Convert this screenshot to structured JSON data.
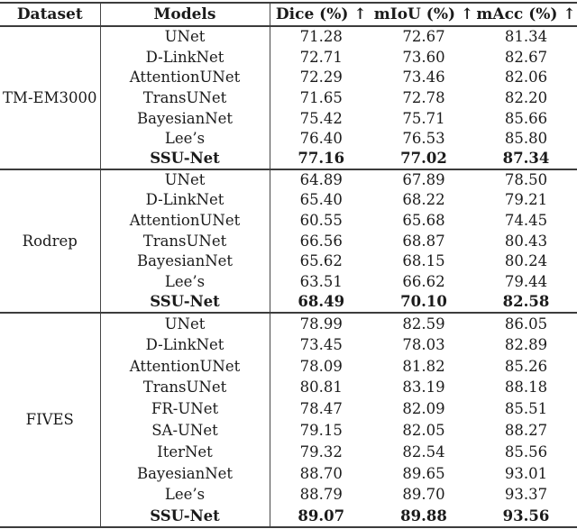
{
  "table": {
    "columns": [
      "Dataset",
      "Models",
      "Dice (%) ↑",
      "mIoU (%) ↑",
      "mAcc (%) ↑"
    ],
    "groups": [
      {
        "dataset": "TM-EM3000",
        "rows": [
          {
            "model": "UNet",
            "dice": "71.28",
            "miou": "72.67",
            "macc": "81.34",
            "bold": false
          },
          {
            "model": "D-LinkNet",
            "dice": "72.71",
            "miou": "73.60",
            "macc": "82.67",
            "bold": false
          },
          {
            "model": "AttentionUNet",
            "dice": "72.29",
            "miou": "73.46",
            "macc": "82.06",
            "bold": false
          },
          {
            "model": "TransUNet",
            "dice": "71.65",
            "miou": "72.78",
            "macc": "82.20",
            "bold": false
          },
          {
            "model": "BayesianNet",
            "dice": "75.42",
            "miou": "75.71",
            "macc": "85.66",
            "bold": false
          },
          {
            "model": "Lee’s",
            "dice": "76.40",
            "miou": "76.53",
            "macc": "85.80",
            "bold": false
          },
          {
            "model": "SSU-Net",
            "dice": "77.16",
            "miou": "77.02",
            "macc": "87.34",
            "bold": true
          }
        ]
      },
      {
        "dataset": "Rodrep",
        "rows": [
          {
            "model": "UNet",
            "dice": "64.89",
            "miou": "67.89",
            "macc": "78.50",
            "bold": false
          },
          {
            "model": "D-LinkNet",
            "dice": "65.40",
            "miou": "68.22",
            "macc": "79.21",
            "bold": false
          },
          {
            "model": "AttentionUNet",
            "dice": "60.55",
            "miou": "65.68",
            "macc": "74.45",
            "bold": false
          },
          {
            "model": "TransUNet",
            "dice": "66.56",
            "miou": "68.87",
            "macc": "80.43",
            "bold": false
          },
          {
            "model": "BayesianNet",
            "dice": "65.62",
            "miou": "68.15",
            "macc": "80.24",
            "bold": false
          },
          {
            "model": "Lee’s",
            "dice": "63.51",
            "miou": "66.62",
            "macc": "79.44",
            "bold": false
          },
          {
            "model": "SSU-Net",
            "dice": "68.49",
            "miou": "70.10",
            "macc": "82.58",
            "bold": true
          }
        ]
      },
      {
        "dataset": "FIVES",
        "rows": [
          {
            "model": "UNet",
            "dice": "78.99",
            "miou": "82.59",
            "macc": "86.05",
            "bold": false
          },
          {
            "model": "D-LinkNet",
            "dice": "73.45",
            "miou": "78.03",
            "macc": "82.89",
            "bold": false
          },
          {
            "model": "AttentionUNet",
            "dice": "78.09",
            "miou": "81.82",
            "macc": "85.26",
            "bold": false
          },
          {
            "model": "TransUNet",
            "dice": "80.81",
            "miou": "83.19",
            "macc": "88.18",
            "bold": false
          },
          {
            "model": "FR-UNet",
            "dice": "78.47",
            "miou": "82.09",
            "macc": "85.51",
            "bold": false
          },
          {
            "model": "SA-UNet",
            "dice": "79.15",
            "miou": "82.05",
            "macc": "88.27",
            "bold": false
          },
          {
            "model": "IterNet",
            "dice": "79.32",
            "miou": "82.54",
            "macc": "85.56",
            "bold": false
          },
          {
            "model": "BayesianNet",
            "dice": "88.70",
            "miou": "89.65",
            "macc": "93.01",
            "bold": false
          },
          {
            "model": "Lee’s",
            "dice": "88.79",
            "miou": "89.70",
            "macc": "93.37",
            "bold": false
          },
          {
            "model": "SSU-Net",
            "dice": "89.07",
            "miou": "89.88",
            "macc": "93.56",
            "bold": true
          }
        ]
      }
    ]
  }
}
